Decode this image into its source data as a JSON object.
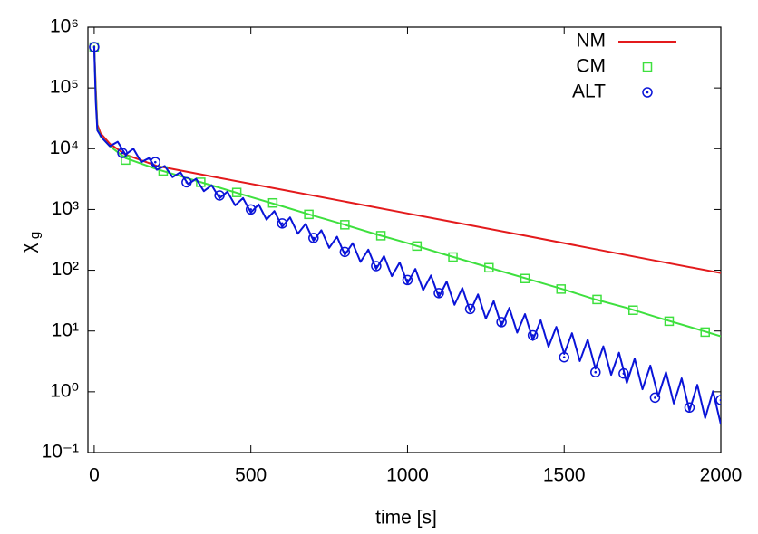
{
  "chart_data": {
    "type": "line",
    "xlabel": "time [s]",
    "ylabel": "χ",
    "ylabel_sub": "g",
    "xlim": [
      -20,
      2000
    ],
    "ylim": [
      0.1,
      1000000
    ],
    "log_y": true,
    "xticks": [
      0,
      500,
      1000,
      1500,
      2000
    ],
    "yticks": [
      {
        "value": 0.1,
        "label": "10⁻¹"
      },
      {
        "value": 1,
        "label": "10⁰"
      },
      {
        "value": 10,
        "label": "10¹"
      },
      {
        "value": 100,
        "label": "10²"
      },
      {
        "value": 1000,
        "label": "10³"
      },
      {
        "value": 10000,
        "label": "10⁴"
      },
      {
        "value": 100000,
        "label": "10⁵"
      },
      {
        "value": 1000000,
        "label": "10⁶"
      }
    ],
    "legend": "top-right",
    "series": [
      {
        "name": "NM",
        "color": "#e31a1c",
        "legend_symbol": "line",
        "x": [
          0,
          5,
          10,
          20,
          50,
          100,
          200,
          400,
          600,
          800,
          1000,
          1200,
          1400,
          1600,
          1800,
          2000
        ],
        "values": [
          500000,
          100000,
          25000,
          18000,
          12000,
          8000,
          5200,
          3300,
          2110,
          1350,
          860,
          550,
          350,
          222,
          141,
          90
        ]
      },
      {
        "name": "CM",
        "color": "#3ee03e",
        "legend_symbol": "square",
        "x": [
          0,
          5,
          10,
          20,
          50,
          100,
          200,
          300,
          400,
          500,
          600,
          700,
          800,
          900,
          1000,
          1100,
          1200,
          1300,
          1400,
          1500,
          1600,
          1700,
          1800,
          1900,
          2000
        ],
        "values": [
          500000,
          80000,
          22000,
          16000,
          11000,
          7000,
          4600,
          3240,
          2280,
          1600,
          1130,
          790,
          560,
          390,
          280,
          194,
          137,
          96,
          68,
          48,
          33,
          24,
          16.6,
          11.7,
          8.2
        ],
        "markers": {
          "x": [
            0,
            100,
            220,
            340,
            455,
            570,
            685,
            800,
            915,
            1030,
            1145,
            1260,
            1375,
            1490,
            1605,
            1720,
            1835,
            1950
          ],
          "values": [
            470000,
            6500,
            4300,
            2800,
            1900,
            1280,
            830,
            560,
            370,
            250,
            165,
            110,
            73,
            49,
            33,
            22,
            14.5,
            9.6
          ]
        }
      },
      {
        "name": "ALT",
        "color": "#0a14d8",
        "legend_symbol": "circle",
        "x": [
          0,
          5,
          10,
          25,
          50,
          75,
          100,
          125,
          150,
          175,
          200,
          225,
          250,
          275,
          300,
          325,
          350,
          375,
          400,
          425,
          450,
          475,
          500,
          525,
          550,
          575,
          600,
          625,
          650,
          675,
          700,
          725,
          750,
          775,
          800,
          825,
          850,
          875,
          900,
          925,
          950,
          975,
          1000,
          1025,
          1050,
          1075,
          1100,
          1125,
          1150,
          1175,
          1200,
          1225,
          1250,
          1275,
          1300,
          1325,
          1350,
          1375,
          1400,
          1425,
          1450,
          1475,
          1500,
          1525,
          1550,
          1575,
          1600,
          1625,
          1650,
          1675,
          1700,
          1725,
          1750,
          1775,
          1800,
          1825,
          1850,
          1875,
          1900,
          1925,
          1950,
          1975,
          2000
        ],
        "values": [
          470000,
          60000,
          20000,
          15000,
          11000,
          13000,
          8000,
          10000,
          6000,
          7000,
          4500,
          5200,
          3400,
          4100,
          2600,
          3200,
          2000,
          2500,
          1530,
          1960,
          1170,
          1540,
          890,
          1210,
          680,
          940,
          520,
          740,
          400,
          580,
          305,
          455,
          234,
          356,
          179,
          279,
          137,
          218,
          105,
          171,
          80,
          134,
          61,
          105,
          47,
          82,
          36,
          65,
          27,
          51,
          21,
          40,
          16,
          31,
          12.2,
          24,
          9.4,
          19,
          7.1,
          15,
          5.5,
          11.7,
          4.2,
          9.2,
          3.2,
          7.2,
          2.4,
          5.6,
          1.9,
          4.4,
          1.4,
          3.5,
          1.1,
          2.7,
          0.84,
          2.1,
          0.64,
          1.66,
          0.49,
          1.3,
          0.37,
          1.02,
          0.29
        ],
        "markers": {
          "x": [
            0,
            90,
            195,
            295,
            400,
            500,
            600,
            700,
            800,
            900,
            1000,
            1100,
            1200,
            1300,
            1400,
            1500,
            1600,
            1690,
            1790,
            1900,
            2000
          ],
          "values": [
            470000,
            8500,
            6000,
            2800,
            1700,
            1000,
            590,
            340,
            200,
            117,
            69,
            42,
            23,
            14,
            8.5,
            3.7,
            2.1,
            2.0,
            0.8,
            0.55,
            0.73
          ]
        }
      }
    ]
  }
}
